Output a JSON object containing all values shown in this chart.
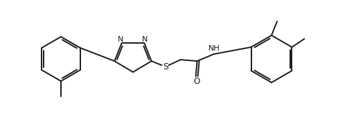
{
  "background_color": "#ffffff",
  "line_color": "#1a1a1a",
  "lw": 1.4,
  "fig_width": 4.88,
  "fig_height": 1.63,
  "dpi": 100,
  "xlim": [
    0,
    488
  ],
  "ylim": [
    0,
    163
  ]
}
